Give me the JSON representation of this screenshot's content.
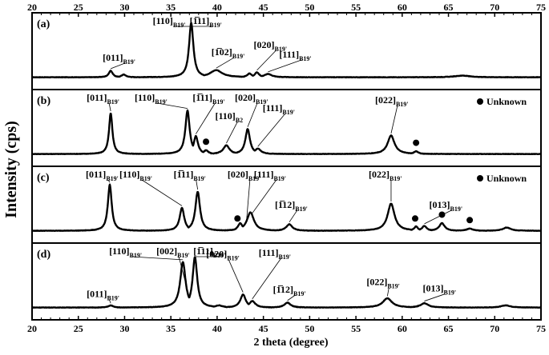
{
  "chart_data": {
    "type": "line",
    "title": "",
    "xlabel": "2 theta (degree)",
    "ylabel": "Intensity (cps)",
    "xlim": [
      20,
      75
    ],
    "x_ticks": [
      "20",
      "25",
      "30",
      "35",
      "40",
      "45",
      "50",
      "55",
      "60",
      "65",
      "70",
      "75"
    ],
    "marker_label": "Unknown",
    "panels": [
      {
        "label": "(a)",
        "baseline": 0.1,
        "noise": 0.6,
        "peaks": [
          {
            "x": 28.5,
            "h": 0.12,
            "w": 0.25
          },
          {
            "x": 29.9,
            "h": 0.05,
            "w": 0.3
          },
          {
            "x": 37.2,
            "h": 1.0,
            "w": 0.28
          },
          {
            "x": 39.9,
            "h": 0.13,
            "w": 0.8
          },
          {
            "x": 43.5,
            "h": 0.07,
            "w": 0.3
          },
          {
            "x": 44.3,
            "h": 0.09,
            "w": 0.3
          },
          {
            "x": 45.5,
            "h": 0.06,
            "w": 0.5
          },
          {
            "x": 66.5,
            "h": 0.03,
            "w": 1.0
          }
        ],
        "labels": [
          {
            "main": "[011]",
            "sub": "B19'",
            "x": 28.5
          },
          {
            "main": "[110]",
            "sub": "B19'",
            "x": 37.2
          },
          {
            "main": "[1̅11]",
            "sub": "B19'",
            "x": 37.2
          },
          {
            "main": "[1̅02]",
            "sub": "B19'",
            "x": 39.9
          },
          {
            "main": "[020]",
            "sub": "B19'",
            "x": 44.3
          },
          {
            "main": "[111]",
            "sub": "B19'",
            "x": 45.5
          }
        ],
        "unknown_markers": [],
        "show_legend": false
      },
      {
        "label": "(b)",
        "baseline": 0.1,
        "noise": 0.6,
        "peaks": [
          {
            "x": 28.5,
            "h": 0.75,
            "w": 0.22
          },
          {
            "x": 36.8,
            "h": 0.8,
            "w": 0.28
          },
          {
            "x": 37.7,
            "h": 0.33,
            "w": 0.28
          },
          {
            "x": 38.8,
            "h": 0.07,
            "w": 0.3
          },
          {
            "x": 41.0,
            "h": 0.16,
            "w": 0.4
          },
          {
            "x": 43.3,
            "h": 0.46,
            "w": 0.3
          },
          {
            "x": 44.4,
            "h": 0.1,
            "w": 0.4
          },
          {
            "x": 58.8,
            "h": 0.34,
            "w": 0.45
          },
          {
            "x": 61.5,
            "h": 0.05,
            "w": 0.3
          }
        ],
        "labels": [
          {
            "main": "[011]",
            "sub": "B19'",
            "x": 28.5
          },
          {
            "main": "[110]",
            "sub": "B19'",
            "x": 36.8
          },
          {
            "main": "[1̅11]",
            "sub": "B19'",
            "x": 37.7
          },
          {
            "main": "[110]",
            "sub": "B2",
            "x": 41.0
          },
          {
            "main": "[020]",
            "sub": "B19'",
            "x": 43.3
          },
          {
            "main": "[111]",
            "sub": "B19'",
            "x": 44.4
          },
          {
            "main": "[022]",
            "sub": "B19'",
            "x": 58.8
          }
        ],
        "unknown_markers": [
          38.8,
          61.5
        ],
        "show_legend": true
      },
      {
        "label": "(c)",
        "baseline": 0.1,
        "noise": 0.6,
        "peaks": [
          {
            "x": 28.4,
            "h": 0.85,
            "w": 0.25
          },
          {
            "x": 36.2,
            "h": 0.42,
            "w": 0.3
          },
          {
            "x": 37.9,
            "h": 0.72,
            "w": 0.3
          },
          {
            "x": 42.5,
            "h": 0.14,
            "w": 0.3
          },
          {
            "x": 43.6,
            "h": 0.34,
            "w": 0.45
          },
          {
            "x": 47.8,
            "h": 0.12,
            "w": 0.4
          },
          {
            "x": 58.8,
            "h": 0.5,
            "w": 0.45
          },
          {
            "x": 61.5,
            "h": 0.08,
            "w": 0.25
          },
          {
            "x": 62.4,
            "h": 0.09,
            "w": 0.3
          },
          {
            "x": 64.3,
            "h": 0.14,
            "w": 0.35
          },
          {
            "x": 67.3,
            "h": 0.04,
            "w": 0.4
          },
          {
            "x": 71.3,
            "h": 0.06,
            "w": 0.5
          }
        ],
        "labels": [
          {
            "main": "[011]",
            "sub": "B19'",
            "x": 28.4
          },
          {
            "main": "[110]",
            "sub": "B19'",
            "x": 36.2
          },
          {
            "main": "[1̅11]",
            "sub": "B19'",
            "x": 37.9
          },
          {
            "main": "[020]",
            "sub": "B19'",
            "x": 43.2
          },
          {
            "main": "[111]",
            "sub": "B19'",
            "x": 43.8
          },
          {
            "main": "[1̅12]",
            "sub": "B19'",
            "x": 47.8
          },
          {
            "main": "[022]",
            "sub": "B19'",
            "x": 58.8
          },
          {
            "main": "[013]",
            "sub": "B19'",
            "x": 62.4
          }
        ],
        "unknown_markers": [
          42.2,
          61.4,
          64.3,
          67.3
        ],
        "show_legend": true
      },
      {
        "label": "(d)",
        "baseline": 0.1,
        "noise": 0.6,
        "peaks": [
          {
            "x": 28.5,
            "h": 0.04,
            "w": 0.3
          },
          {
            "x": 36.3,
            "h": 0.84,
            "w": 0.35
          },
          {
            "x": 37.6,
            "h": 0.93,
            "w": 0.3
          },
          {
            "x": 40.2,
            "h": 0.04,
            "w": 0.5
          },
          {
            "x": 42.8,
            "h": 0.24,
            "w": 0.35
          },
          {
            "x": 43.8,
            "h": 0.12,
            "w": 0.4
          },
          {
            "x": 47.6,
            "h": 0.09,
            "w": 0.4
          },
          {
            "x": 58.4,
            "h": 0.17,
            "w": 0.6
          },
          {
            "x": 62.4,
            "h": 0.08,
            "w": 0.5
          },
          {
            "x": 71.2,
            "h": 0.04,
            "w": 0.6
          }
        ],
        "labels": [
          {
            "main": "[011]",
            "sub": "B19'",
            "x": 28.5
          },
          {
            "main": "[110]",
            "sub": "B19'",
            "x": 36.3
          },
          {
            "main": "[002]",
            "sub": "B19'",
            "x": 36.9
          },
          {
            "main": "[1̅11]",
            "sub": "B19'",
            "x": 37.6
          },
          {
            "main": "[020]",
            "sub": "B19'",
            "x": 42.8
          },
          {
            "main": "[111]",
            "sub": "B19'",
            "x": 43.8
          },
          {
            "main": "[1̅12]",
            "sub": "B19'",
            "x": 47.6
          },
          {
            "main": "[022]",
            "sub": "B19'",
            "x": 58.4
          },
          {
            "main": "[013]",
            "sub": "B19'",
            "x": 62.4
          }
        ],
        "unknown_markers": [],
        "show_legend": false
      }
    ]
  }
}
